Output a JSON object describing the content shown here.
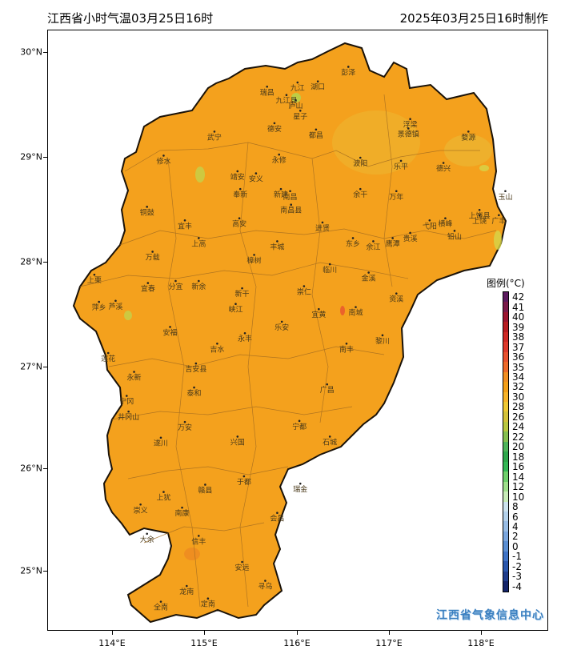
{
  "header": {
    "title_left": "江西省小时气温03月25日16时",
    "title_right": "2025年03月25日16时制作"
  },
  "axes": {
    "lat_labels": [
      "30°N",
      "29°N",
      "28°N",
      "27°N",
      "26°N",
      "25°N"
    ],
    "lon_labels": [
      "114°E",
      "115°E",
      "116°E",
      "117°E",
      "118°E"
    ]
  },
  "legend": {
    "title": "图例(°C)",
    "labels": [
      "42",
      "41",
      "40",
      "39",
      "38",
      "37",
      "36",
      "35",
      "34",
      "32",
      "30",
      "28",
      "26",
      "24",
      "22",
      "20",
      "18",
      "16",
      "14",
      "12",
      "10",
      "8",
      "6",
      "4",
      "2",
      "0",
      "-1",
      "-2",
      "-3",
      "-4"
    ],
    "colors": [
      "#5b1a5e",
      "#7a1a4a",
      "#9c1530",
      "#b81d22",
      "#cf2a26",
      "#de3a2c",
      "#e8522f",
      "#ee6a2a",
      "#f28f22",
      "#f5a017",
      "#f8b428",
      "#efc933",
      "#d4c33a",
      "#b9c840",
      "#86c050",
      "#4fb55a",
      "#2fa84c",
      "#35b856",
      "#6fd06c",
      "#9fe08c",
      "#c8ecb8",
      "#cde4ef",
      "#b4d2ec",
      "#98bde6",
      "#7aa6de",
      "#5b8fd3",
      "#3f73c6",
      "#2a57ad",
      "#1f3d8c",
      "#14246a"
    ]
  },
  "cities": [
    {
      "name": "彭泽",
      "lon": 116.55,
      "lat": 29.87
    },
    {
      "name": "湖口",
      "lon": 116.22,
      "lat": 29.73
    },
    {
      "name": "瑞昌",
      "lon": 115.67,
      "lat": 29.68
    },
    {
      "name": "九江",
      "lon": 116.0,
      "lat": 29.72
    },
    {
      "name": "九江县",
      "lon": 115.88,
      "lat": 29.6
    },
    {
      "name": "庐山",
      "lon": 115.98,
      "lat": 29.55
    },
    {
      "name": "星子",
      "lon": 116.03,
      "lat": 29.45
    },
    {
      "name": "浮梁",
      "lon": 117.22,
      "lat": 29.37
    },
    {
      "name": "景德镇",
      "lon": 117.2,
      "lat": 29.28
    },
    {
      "name": "婺源",
      "lon": 117.85,
      "lat": 29.25
    },
    {
      "name": "德安",
      "lon": 115.75,
      "lat": 29.33
    },
    {
      "name": "都昌",
      "lon": 116.2,
      "lat": 29.27
    },
    {
      "name": "武宁",
      "lon": 115.1,
      "lat": 29.25
    },
    {
      "name": "修水",
      "lon": 114.55,
      "lat": 29.02
    },
    {
      "name": "永修",
      "lon": 115.8,
      "lat": 29.03
    },
    {
      "name": "波阳",
      "lon": 116.68,
      "lat": 29.0
    },
    {
      "name": "乐平",
      "lon": 117.12,
      "lat": 28.97
    },
    {
      "name": "德兴",
      "lon": 117.58,
      "lat": 28.95
    },
    {
      "name": "靖安",
      "lon": 115.35,
      "lat": 28.87
    },
    {
      "name": "安义",
      "lon": 115.55,
      "lat": 28.85
    },
    {
      "name": "新建",
      "lon": 115.82,
      "lat": 28.7
    },
    {
      "name": "南昌",
      "lon": 115.92,
      "lat": 28.68
    },
    {
      "name": "奉新",
      "lon": 115.38,
      "lat": 28.7
    },
    {
      "name": "南昌县",
      "lon": 115.93,
      "lat": 28.55
    },
    {
      "name": "余干",
      "lon": 116.68,
      "lat": 28.7
    },
    {
      "name": "万年",
      "lon": 117.07,
      "lat": 28.68
    },
    {
      "name": "玉山",
      "lon": 118.25,
      "lat": 28.68
    },
    {
      "name": "上饶县",
      "lon": 117.97,
      "lat": 28.5
    },
    {
      "name": "铜鼓",
      "lon": 114.37,
      "lat": 28.53
    },
    {
      "name": "宜丰",
      "lon": 114.78,
      "lat": 28.4
    },
    {
      "name": "高安",
      "lon": 115.37,
      "lat": 28.42
    },
    {
      "name": "进贤",
      "lon": 116.27,
      "lat": 28.38
    },
    {
      "name": "弋阳",
      "lon": 117.43,
      "lat": 28.4
    },
    {
      "name": "横峰",
      "lon": 117.6,
      "lat": 28.42
    },
    {
      "name": "上饶",
      "lon": 117.97,
      "lat": 28.45
    },
    {
      "name": "广丰",
      "lon": 118.18,
      "lat": 28.45
    },
    {
      "name": "贵溪",
      "lon": 117.22,
      "lat": 28.28
    },
    {
      "name": "铅山",
      "lon": 117.7,
      "lat": 28.3
    },
    {
      "name": "上高",
      "lon": 114.93,
      "lat": 28.23
    },
    {
      "name": "丰城",
      "lon": 115.78,
      "lat": 28.2
    },
    {
      "name": "东乡",
      "lon": 116.6,
      "lat": 28.23
    },
    {
      "name": "余江",
      "lon": 116.82,
      "lat": 28.2
    },
    {
      "name": "鹰潭",
      "lon": 117.03,
      "lat": 28.23
    },
    {
      "name": "万载",
      "lon": 114.43,
      "lat": 28.1
    },
    {
      "name": "樟树",
      "lon": 115.53,
      "lat": 28.07
    },
    {
      "name": "临川",
      "lon": 116.35,
      "lat": 27.98
    },
    {
      "name": "上栗",
      "lon": 113.8,
      "lat": 27.88
    },
    {
      "name": "宜春",
      "lon": 114.38,
      "lat": 27.8
    },
    {
      "name": "分宜",
      "lon": 114.68,
      "lat": 27.82
    },
    {
      "name": "新余",
      "lon": 114.93,
      "lat": 27.82
    },
    {
      "name": "金溪",
      "lon": 116.77,
      "lat": 27.9
    },
    {
      "name": "资溪",
      "lon": 117.07,
      "lat": 27.7
    },
    {
      "name": "萍乡",
      "lon": 113.85,
      "lat": 27.62
    },
    {
      "name": "芦溪",
      "lon": 114.03,
      "lat": 27.63
    },
    {
      "name": "新干",
      "lon": 115.4,
      "lat": 27.75
    },
    {
      "name": "崇仁",
      "lon": 116.07,
      "lat": 27.77
    },
    {
      "name": "峡江",
      "lon": 115.33,
      "lat": 27.6
    },
    {
      "name": "宜黄",
      "lon": 116.23,
      "lat": 27.55
    },
    {
      "name": "南城",
      "lon": 116.63,
      "lat": 27.57
    },
    {
      "name": "安福",
      "lon": 114.62,
      "lat": 27.38
    },
    {
      "name": "乐安",
      "lon": 115.83,
      "lat": 27.43
    },
    {
      "name": "永丰",
      "lon": 115.43,
      "lat": 27.32
    },
    {
      "name": "黎川",
      "lon": 116.92,
      "lat": 27.3
    },
    {
      "name": "南丰",
      "lon": 116.53,
      "lat": 27.22
    },
    {
      "name": "吉水",
      "lon": 115.13,
      "lat": 27.22
    },
    {
      "name": "莲花",
      "lon": 113.95,
      "lat": 27.13
    },
    {
      "name": "吉安县",
      "lon": 114.9,
      "lat": 27.03
    },
    {
      "name": "永新",
      "lon": 114.23,
      "lat": 26.95
    },
    {
      "name": "广昌",
      "lon": 116.32,
      "lat": 26.83
    },
    {
      "name": "泰和",
      "lon": 114.88,
      "lat": 26.8
    },
    {
      "name": "宁冈",
      "lon": 114.15,
      "lat": 26.72
    },
    {
      "name": "井冈山",
      "lon": 114.17,
      "lat": 26.57
    },
    {
      "name": "万安",
      "lon": 114.78,
      "lat": 26.47
    },
    {
      "name": "宁都",
      "lon": 116.02,
      "lat": 26.48
    },
    {
      "name": "石城",
      "lon": 116.35,
      "lat": 26.33
    },
    {
      "name": "兴国",
      "lon": 115.35,
      "lat": 26.33
    },
    {
      "name": "遂川",
      "lon": 114.52,
      "lat": 26.32
    },
    {
      "name": "赣县",
      "lon": 115.0,
      "lat": 25.87
    },
    {
      "name": "于都",
      "lon": 115.42,
      "lat": 25.95
    },
    {
      "name": "瑞金",
      "lon": 116.03,
      "lat": 25.88
    },
    {
      "name": "上犹",
      "lon": 114.55,
      "lat": 25.8
    },
    {
      "name": "崇义",
      "lon": 114.3,
      "lat": 25.68
    },
    {
      "name": "南康",
      "lon": 114.75,
      "lat": 25.65
    },
    {
      "name": "会昌",
      "lon": 115.78,
      "lat": 25.6
    },
    {
      "name": "大余",
      "lon": 114.37,
      "lat": 25.4
    },
    {
      "name": "信丰",
      "lon": 114.93,
      "lat": 25.38
    },
    {
      "name": "安远",
      "lon": 115.4,
      "lat": 25.13
    },
    {
      "name": "龙南",
      "lon": 114.8,
      "lat": 24.9
    },
    {
      "name": "寻乌",
      "lon": 115.65,
      "lat": 24.95
    },
    {
      "name": "定南",
      "lon": 115.03,
      "lat": 24.78
    },
    {
      "name": "全南",
      "lon": 114.52,
      "lat": 24.75
    }
  ],
  "watermark": "江西省气象信息中心"
}
